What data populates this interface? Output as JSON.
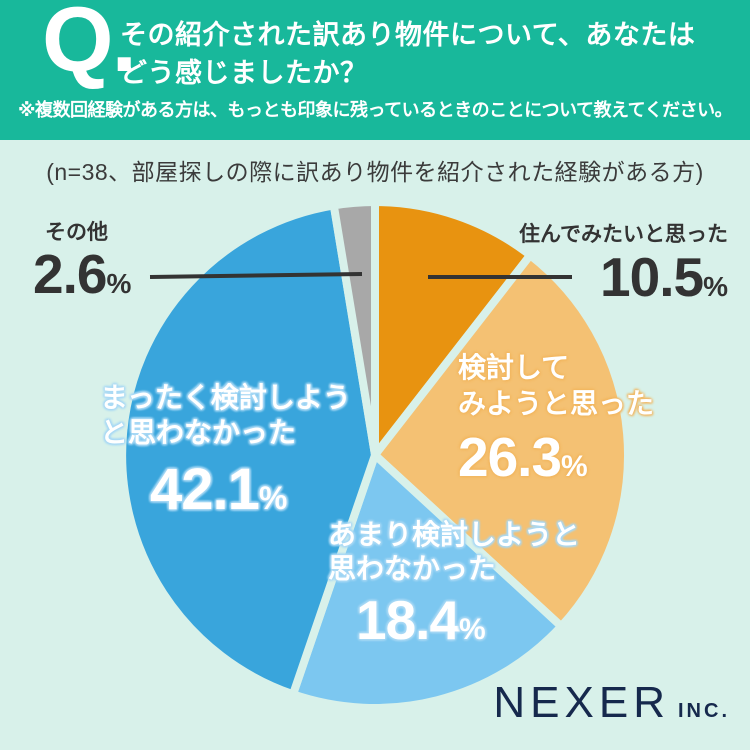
{
  "colors": {
    "header_bg": "#18b89b",
    "background": "#d8f1ea",
    "dark_text": "#333333",
    "white_text": "#ffffff",
    "leader_line": "#333333",
    "logo_navy": "#16294d"
  },
  "header": {
    "q_mark": "Q.",
    "question_lines": [
      "その紹介された訳あり物件について、あなたは",
      "どう感じましたか？"
    ],
    "note": "※複数回経験がある方は、もっとも印象に残っているときのことについて教えてください。"
  },
  "survey_note": "(n=38、部屋探しの際に訳あり物件を紹介された経験がある方)",
  "chart_data": {
    "type": "pie",
    "title": "その紹介された訳あり物件について、あなたはどう感じましたか？",
    "sample_size": 38,
    "unit": "%",
    "start_angle_deg": 0,
    "direction": "clockwise",
    "segments": [
      {
        "id": "live",
        "label": "住んでみたいと思った",
        "lines": [
          "住んでみたいと思った"
        ],
        "value": 10.5,
        "color": "#e89310"
      },
      {
        "id": "consider",
        "label": "検討してみようと思った",
        "lines": [
          "検討して",
          "みようと思った"
        ],
        "value": 26.3,
        "color": "#f4c173"
      },
      {
        "id": "notreally",
        "label": "あまり検討しようと思わなかった",
        "lines": [
          "あまり検討しようと",
          "思わなかった"
        ],
        "value": 18.4,
        "color": "#7cc7f0"
      },
      {
        "id": "notatall",
        "label": "まったく検討しようと思わなかった",
        "lines": [
          "まったく検討しよう",
          "と思わなかった"
        ],
        "value": 42.1,
        "color": "#39a5dc"
      },
      {
        "id": "other",
        "label": "その他",
        "lines": [
          "その他"
        ],
        "value": 2.6,
        "color": "#a8a8a8"
      }
    ]
  },
  "ui": {
    "percent_sign": "%"
  },
  "footer": {
    "brand": "NEXER",
    "brand_suffix": "INC."
  }
}
